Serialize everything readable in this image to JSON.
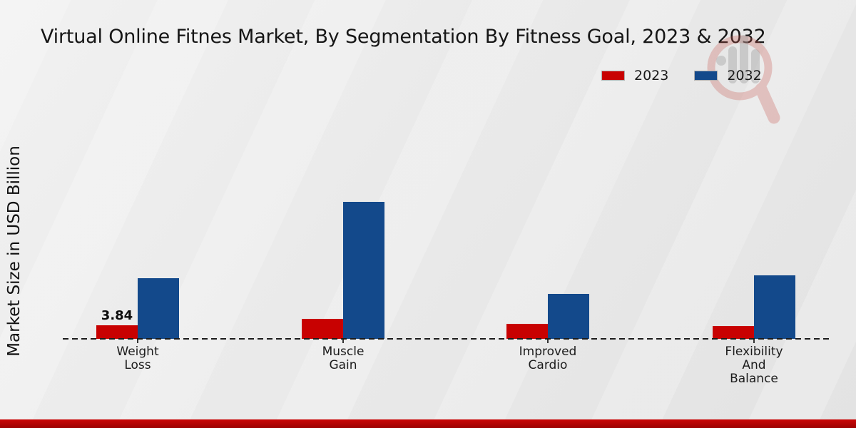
{
  "title": "Virtual Online Fitnes Market, By Segmentation By Fitness Goal, 2023 & 2032",
  "chart_data": {
    "type": "bar",
    "categories": [
      "Weight Loss",
      "Muscle Gain",
      "Improved Cardio",
      "Flexibility And Balance"
    ],
    "series": [
      {
        "name": "2023",
        "color": "#c80101",
        "values": [
          3.84,
          5.6,
          4.1,
          3.5
        ]
      },
      {
        "name": "2032",
        "color": "#13498b",
        "values": [
          17.0,
          38.2,
          12.5,
          17.7
        ]
      }
    ],
    "ylabel": "Market Size in USD Billion",
    "xlabel": "",
    "ylim": [
      0,
      40
    ],
    "grid": false,
    "legend_position": "top-right",
    "baseline_style": "dashed",
    "value_labels": [
      {
        "series_index": 0,
        "category_index": 0,
        "text": "3.84"
      }
    ]
  },
  "colors": {
    "series_2023": "#c80101",
    "series_2032": "#13498b",
    "background": "#e9e9e9",
    "footer_band": "#b50404",
    "watermark_red": "#c5524a",
    "watermark_gray": "#9a9a9a"
  }
}
